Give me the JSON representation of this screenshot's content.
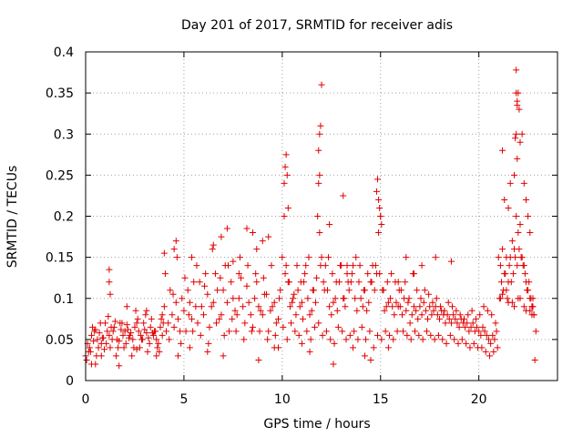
{
  "chart_data": {
    "type": "scatter",
    "title": "Day 201 of 2017, SRMTID for receiver adis",
    "xlabel": "GPS time / hours",
    "ylabel": "SRMTID / TECUs",
    "xlim": [
      0,
      24
    ],
    "ylim": [
      0,
      0.4
    ],
    "x_ticks": [
      0,
      5,
      10,
      15,
      20
    ],
    "y_ticks": [
      0,
      0.05,
      0.1,
      0.15,
      0.2,
      0.25,
      0.3,
      0.35,
      0.4
    ],
    "x_tick_labels": [
      "0",
      "5",
      "10",
      "15",
      "20"
    ],
    "y_tick_labels": [
      "0",
      "0.05",
      "0.1",
      "0.15",
      "0.2",
      "0.25",
      "0.3",
      "0.35",
      "0.4"
    ],
    "grid": true,
    "marker": "plus",
    "marker_color": "#e00000",
    "series": [
      {
        "x": [
          0.0,
          0.1,
          0.2,
          0.3,
          0.4,
          0.5,
          0.6,
          0.7,
          0.8,
          0.9,
          1.0,
          1.1,
          1.2,
          1.3,
          1.4,
          1.5,
          1.6,
          1.7,
          1.8,
          1.9,
          2.0,
          2.1,
          2.2,
          2.3,
          2.4,
          2.5,
          2.6,
          2.7,
          2.8,
          2.9,
          3.0,
          3.1,
          3.2,
          3.3,
          3.4,
          3.5,
          3.6,
          3.7,
          3.8,
          3.9,
          0.05,
          0.25,
          0.45,
          0.65,
          0.85,
          1.05,
          1.25,
          1.45,
          1.65,
          1.85,
          2.05,
          2.25,
          2.45,
          2.65,
          2.85,
          3.05,
          3.25,
          3.45,
          3.65,
          3.85,
          0.15,
          0.35,
          0.55,
          0.75,
          0.95,
          1.15,
          1.35,
          1.55,
          1.75,
          1.95,
          2.15,
          2.35,
          2.55,
          2.75,
          2.95,
          3.15,
          3.35,
          3.55,
          3.75,
          3.95,
          1.2,
          1.2,
          1.25,
          0.5,
          2.1,
          3.1,
          3.6,
          3.9,
          0.3,
          0.8,
          1.7,
          2.6,
          4.0,
          4.2,
          4.4,
          4.6,
          4.8,
          5.0,
          5.2,
          5.4,
          5.6,
          5.8,
          6.0,
          6.2,
          6.4,
          6.6,
          6.8,
          7.0,
          7.2,
          7.4,
          7.6,
          7.8,
          8.0,
          8.2,
          8.4,
          8.6,
          8.8,
          9.0,
          9.2,
          9.4,
          9.6,
          9.8,
          4.1,
          4.3,
          4.5,
          4.7,
          4.9,
          5.1,
          5.3,
          5.5,
          5.7,
          5.9,
          6.1,
          6.3,
          6.5,
          6.7,
          6.9,
          7.1,
          7.3,
          7.5,
          7.7,
          7.9,
          8.1,
          8.3,
          8.5,
          8.7,
          8.9,
          9.1,
          9.3,
          9.5,
          9.7,
          9.9,
          4.05,
          4.25,
          4.45,
          4.65,
          4.85,
          5.05,
          5.25,
          5.45,
          5.65,
          5.85,
          6.05,
          6.25,
          6.45,
          6.65,
          6.85,
          7.05,
          7.25,
          7.45,
          7.65,
          7.85,
          8.05,
          8.25,
          8.45,
          8.65,
          8.85,
          9.05,
          9.25,
          9.45,
          9.65,
          9.85,
          4.0,
          4.5,
          4.6,
          5.4,
          6.5,
          6.9,
          7.2,
          7.5,
          7.8,
          8.2,
          8.5,
          8.7,
          9.0,
          9.3,
          4.7,
          5.3,
          6.2,
          7.0,
          8.8,
          9.6,
          10.0,
          10.1,
          10.2,
          10.3,
          10.4,
          10.5,
          10.6,
          10.7,
          10.8,
          10.9,
          11.0,
          11.1,
          11.2,
          11.3,
          11.4,
          11.5,
          11.6,
          11.7,
          11.8,
          11.9,
          12.0,
          12.1,
          12.2,
          12.3,
          12.4,
          12.5,
          12.6,
          12.7,
          12.8,
          12.9,
          13.0,
          13.1,
          13.2,
          13.3,
          13.4,
          13.5,
          13.6,
          13.7,
          13.8,
          13.9,
          14.0,
          14.1,
          14.2,
          14.3,
          14.4,
          14.5,
          14.6,
          14.7,
          14.8,
          14.9,
          15.0,
          15.1,
          15.2,
          15.3,
          15.4,
          15.5,
          15.6,
          15.7,
          15.8,
          15.9,
          10.05,
          10.25,
          10.45,
          10.65,
          10.85,
          11.05,
          11.25,
          11.45,
          11.65,
          11.85,
          12.05,
          12.25,
          12.45,
          12.65,
          12.85,
          13.05,
          13.25,
          13.45,
          13.65,
          13.85,
          14.05,
          14.25,
          14.45,
          14.65,
          14.85,
          15.05,
          15.25,
          15.45,
          15.65,
          15.85,
          10.15,
          10.35,
          10.55,
          10.75,
          10.95,
          11.15,
          11.35,
          11.55,
          11.75,
          11.95,
          12.15,
          12.35,
          12.55,
          12.75,
          12.95,
          13.15,
          13.35,
          13.55,
          13.75,
          13.95,
          14.15,
          14.35,
          14.55,
          14.75,
          14.95,
          15.15,
          15.35,
          15.55,
          15.75,
          15.95,
          10.1,
          10.15,
          10.2,
          10.25,
          10.3,
          11.85,
          11.9,
          11.95,
          11.9,
          11.85,
          12.0,
          12.4,
          13.1,
          13.3,
          14.8,
          14.85,
          14.9,
          14.95,
          15.0,
          15.05,
          11.4,
          12.6,
          13.6,
          14.2,
          9.8,
          11.0,
          14.5,
          15.4,
          16.0,
          16.1,
          16.2,
          16.3,
          16.4,
          16.5,
          16.6,
          16.7,
          16.8,
          16.9,
          17.0,
          17.1,
          17.2,
          17.3,
          17.4,
          17.5,
          17.6,
          17.7,
          17.8,
          17.9,
          18.0,
          18.1,
          18.2,
          18.3,
          18.4,
          18.5,
          18.6,
          18.7,
          18.8,
          18.9,
          19.0,
          19.1,
          19.2,
          19.3,
          19.4,
          19.5,
          19.6,
          19.7,
          19.8,
          19.9,
          20.0,
          20.1,
          20.2,
          20.3,
          20.4,
          20.5,
          20.6,
          20.7,
          20.8,
          20.9,
          16.05,
          16.25,
          16.45,
          16.65,
          16.85,
          17.05,
          17.25,
          17.45,
          17.65,
          17.85,
          18.05,
          18.25,
          18.45,
          18.65,
          18.85,
          19.05,
          19.25,
          19.45,
          19.65,
          19.85,
          20.05,
          20.25,
          20.45,
          20.65,
          20.85,
          16.15,
          16.35,
          16.55,
          16.75,
          16.95,
          17.15,
          17.35,
          17.55,
          17.75,
          17.95,
          18.15,
          18.35,
          18.55,
          18.75,
          18.95,
          19.15,
          19.35,
          19.55,
          19.75,
          19.95,
          20.15,
          20.35,
          20.55,
          20.75,
          20.95,
          16.3,
          17.1,
          17.8,
          18.6,
          16.7,
          15.9,
          21.0,
          21.1,
          21.2,
          21.3,
          21.4,
          21.5,
          21.6,
          21.7,
          21.8,
          21.9,
          22.0,
          22.1,
          22.2,
          22.3,
          22.4,
          22.5,
          22.6,
          22.7,
          22.8,
          21.05,
          21.15,
          21.25,
          21.35,
          21.45,
          21.55,
          21.65,
          21.75,
          21.85,
          21.95,
          22.05,
          22.15,
          22.25,
          22.35,
          22.45,
          22.55,
          22.65,
          22.75,
          21.2,
          21.3,
          21.5,
          21.6,
          21.8,
          21.9,
          21.95,
          22.0,
          22.05,
          22.1,
          21.85,
          21.9,
          21.95,
          22.3,
          22.4,
          22.5,
          22.2,
          22.6,
          21.1,
          21.4,
          21.7,
          22.0,
          22.3,
          22.6,
          21.2,
          21.5,
          21.8,
          22.1,
          22.4,
          22.7,
          22.8,
          22.85,
          22.9,
          22.7,
          22.75
        ],
        "y": [
          0.03,
          0.045,
          0.04,
          0.055,
          0.048,
          0.062,
          0.05,
          0.058,
          0.045,
          0.052,
          0.07,
          0.06,
          0.055,
          0.065,
          0.06,
          0.072,
          0.05,
          0.048,
          0.062,
          0.055,
          0.06,
          0.068,
          0.052,
          0.058,
          0.05,
          0.065,
          0.07,
          0.06,
          0.055,
          0.05,
          0.062,
          0.058,
          0.052,
          0.065,
          0.058,
          0.06,
          0.05,
          0.045,
          0.065,
          0.055,
          0.025,
          0.035,
          0.06,
          0.04,
          0.052,
          0.045,
          0.04,
          0.065,
          0.04,
          0.07,
          0.045,
          0.055,
          0.04,
          0.075,
          0.05,
          0.08,
          0.045,
          0.055,
          0.04,
          0.075,
          0.035,
          0.065,
          0.03,
          0.07,
          0.038,
          0.078,
          0.05,
          0.03,
          0.07,
          0.04,
          0.062,
          0.03,
          0.085,
          0.04,
          0.07,
          0.035,
          0.075,
          0.06,
          0.035,
          0.07,
          0.135,
          0.12,
          0.105,
          0.02,
          0.09,
          0.085,
          0.03,
          0.08,
          0.02,
          0.03,
          0.018,
          0.038,
          0.09,
          0.07,
          0.08,
          0.095,
          0.06,
          0.085,
          0.11,
          0.075,
          0.09,
          0.12,
          0.08,
          0.105,
          0.09,
          0.13,
          0.075,
          0.11,
          0.095,
          0.12,
          0.085,
          0.1,
          0.09,
          0.115,
          0.08,
          0.1,
          0.09,
          0.08,
          0.105,
          0.085,
          0.095,
          0.075,
          0.06,
          0.11,
          0.065,
          0.075,
          0.1,
          0.06,
          0.095,
          0.12,
          0.07,
          0.09,
          0.13,
          0.065,
          0.095,
          0.11,
          0.08,
          0.14,
          0.06,
          0.1,
          0.08,
          0.125,
          0.07,
          0.095,
          0.065,
          0.12,
          0.085,
          0.105,
          0.06,
          0.09,
          0.07,
          0.11,
          0.13,
          0.05,
          0.105,
          0.15,
          0.045,
          0.125,
          0.08,
          0.06,
          0.14,
          0.055,
          0.115,
          0.045,
          0.16,
          0.07,
          0.125,
          0.055,
          0.14,
          0.075,
          0.06,
          0.15,
          0.05,
          0.14,
          0.06,
          0.13,
          0.06,
          0.125,
          0.05,
          0.14,
          0.055,
          0.1,
          0.155,
          0.16,
          0.17,
          0.15,
          0.165,
          0.175,
          0.185,
          0.145,
          0.13,
          0.185,
          0.18,
          0.16,
          0.17,
          0.175,
          0.03,
          0.04,
          0.035,
          0.03,
          0.025,
          0.04,
          0.15,
          0.2,
          0.14,
          0.12,
          0.09,
          0.095,
          0.105,
          0.08,
          0.11,
          0.09,
          0.095,
          0.12,
          0.14,
          0.1,
          0.08,
          0.085,
          0.11,
          0.095,
          0.2,
          0.18,
          0.15,
          0.12,
          0.14,
          0.11,
          0.09,
          0.08,
          0.095,
          0.1,
          0.085,
          0.12,
          0.14,
          0.1,
          0.09,
          0.13,
          0.11,
          0.12,
          0.14,
          0.1,
          0.085,
          0.12,
          0.1,
          0.09,
          0.11,
          0.085,
          0.095,
          0.12,
          0.14,
          0.11,
          0.13,
          0.18,
          0.2,
          0.11,
          0.085,
          0.09,
          0.095,
          0.1,
          0.09,
          0.08,
          0.095,
          0.09,
          0.065,
          0.05,
          0.07,
          0.06,
          0.055,
          0.075,
          0.06,
          0.05,
          0.065,
          0.07,
          0.055,
          0.06,
          0.05,
          0.045,
          0.065,
          0.06,
          0.05,
          0.055,
          0.06,
          0.05,
          0.065,
          0.05,
          0.06,
          0.04,
          0.055,
          0.05,
          0.06,
          0.055,
          0.05,
          0.06,
          0.13,
          0.12,
          0.1,
          0.14,
          0.12,
          0.13,
          0.15,
          0.11,
          0.125,
          0.14,
          0.11,
          0.15,
          0.13,
          0.12,
          0.14,
          0.1,
          0.12,
          0.13,
          0.15,
          0.14,
          0.11,
          0.13,
          0.12,
          0.14,
          0.13,
          0.11,
          0.12,
          0.13,
          0.12,
          0.11,
          0.24,
          0.26,
          0.275,
          0.25,
          0.21,
          0.28,
          0.3,
          0.31,
          0.25,
          0.24,
          0.36,
          0.19,
          0.225,
          0.14,
          0.23,
          0.245,
          0.22,
          0.21,
          0.2,
          0.19,
          0.035,
          0.02,
          0.04,
          0.03,
          0.04,
          0.045,
          0.025,
          0.04,
          0.09,
          0.08,
          0.1,
          0.085,
          0.095,
          0.07,
          0.08,
          0.09,
          0.085,
          0.075,
          0.09,
          0.08,
          0.095,
          0.085,
          0.075,
          0.09,
          0.08,
          0.085,
          0.09,
          0.08,
          0.075,
          0.085,
          0.08,
          0.07,
          0.08,
          0.075,
          0.07,
          0.08,
          0.075,
          0.07,
          0.065,
          0.075,
          0.07,
          0.065,
          0.07,
          0.06,
          0.065,
          0.07,
          0.06,
          0.065,
          0.06,
          0.055,
          0.065,
          0.06,
          0.055,
          0.05,
          0.045,
          0.055,
          0.05,
          0.06,
          0.11,
          0.12,
          0.1,
          0.13,
          0.11,
          0.1,
          0.11,
          0.105,
          0.095,
          0.1,
          0.09,
          0.085,
          0.095,
          0.09,
          0.085,
          0.08,
          0.075,
          0.08,
          0.085,
          0.075,
          0.08,
          0.09,
          0.085,
          0.08,
          0.07,
          0.06,
          0.055,
          0.05,
          0.06,
          0.055,
          0.05,
          0.06,
          0.055,
          0.05,
          0.055,
          0.05,
          0.045,
          0.055,
          0.05,
          0.045,
          0.05,
          0.045,
          0.04,
          0.045,
          0.04,
          0.04,
          0.035,
          0.03,
          0.035,
          0.04,
          0.15,
          0.14,
          0.15,
          0.145,
          0.13,
          0.12,
          0.15,
          0.14,
          0.16,
          0.13,
          0.15,
          0.12,
          0.15,
          0.17,
          0.16,
          0.2,
          0.18,
          0.19,
          0.15,
          0.14,
          0.12,
          0.11,
          0.1,
          0.09,
          0.08,
          0.1,
          0.12,
          0.11,
          0.13,
          0.1,
          0.14,
          0.12,
          0.13,
          0.15,
          0.14,
          0.16,
          0.15,
          0.14,
          0.13,
          0.11,
          0.12,
          0.1,
          0.09,
          0.28,
          0.22,
          0.21,
          0.24,
          0.25,
          0.3,
          0.34,
          0.35,
          0.33,
          0.29,
          0.295,
          0.35,
          0.27,
          0.24,
          0.22,
          0.2,
          0.3,
          0.18,
          0.1,
          0.11,
          0.095,
          0.1,
          0.09,
          0.085,
          0.105,
          0.095,
          0.09,
          0.1,
          0.085,
          0.08,
          0.08,
          0.025,
          0.06,
          0.09,
          0.1
        ]
      }
    ],
    "extra_points": {
      "x": [
        21.9,
        21.95
      ],
      "y": [
        0.378,
        0.335
      ]
    }
  }
}
